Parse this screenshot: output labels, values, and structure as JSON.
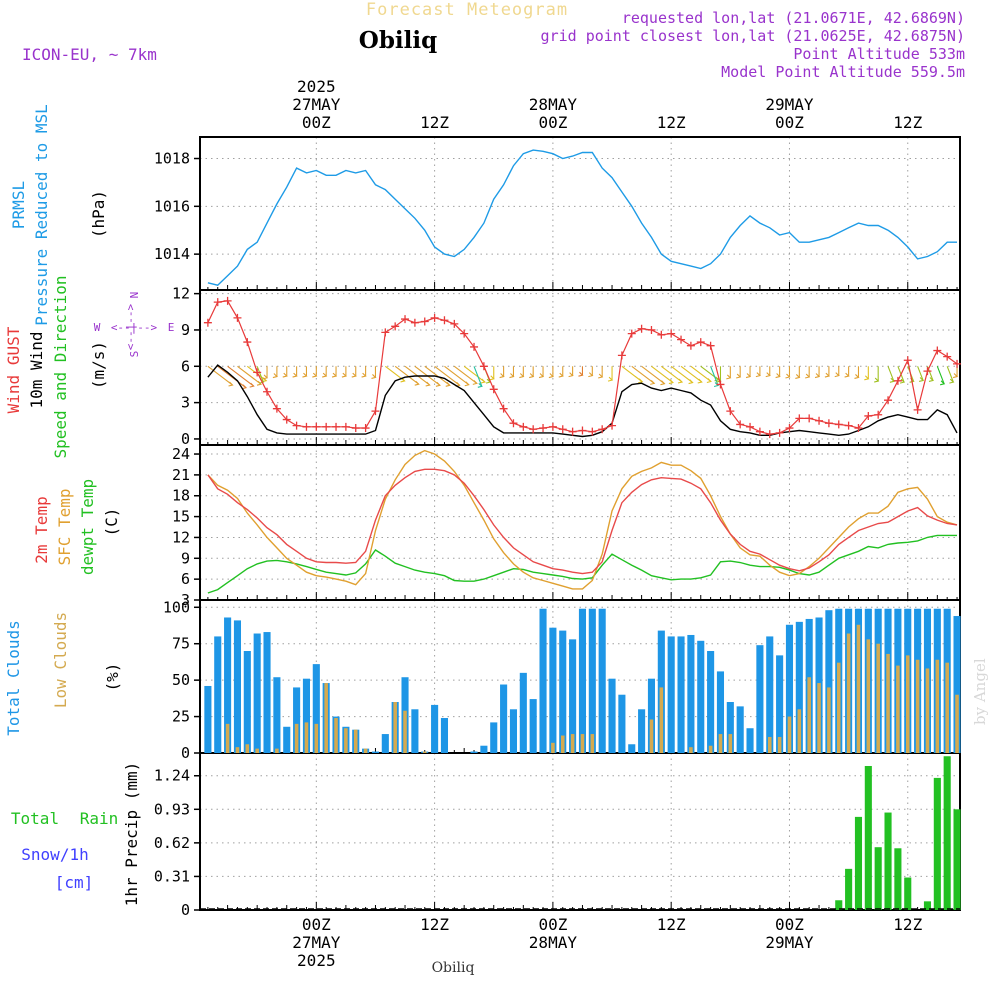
{
  "header": {
    "supertitle": "Forecast Meteogram",
    "location": "Obiliq",
    "model": "ICON-EU, ~ 7km",
    "requested": "requested lon,lat (21.0671E, 42.6869N)",
    "gridpoint": "grid point closest lon,lat (21.0625E, 42.6875N)",
    "altitude": "Point Altitude 533m",
    "model_altitude": "Model Point Altitude 559.5m",
    "credit": "by Angel",
    "footer_location": "Obiliq"
  },
  "time_axis": {
    "year": "2025",
    "top_labels": [
      {
        "hour": 0,
        "zlabel": "00Z",
        "date": "27MAY",
        "year": "2025"
      },
      {
        "hour": 12,
        "zlabel": "12Z",
        "date": "",
        "year": ""
      },
      {
        "hour": 24,
        "zlabel": "00Z",
        "date": "28MAY",
        "year": ""
      },
      {
        "hour": 36,
        "zlabel": "12Z",
        "date": "",
        "year": ""
      },
      {
        "hour": 48,
        "zlabel": "00Z",
        "date": "29MAY",
        "year": ""
      },
      {
        "hour": 60,
        "zlabel": "12Z",
        "date": "",
        "year": ""
      }
    ],
    "start_hour": -11,
    "end_hour": 65
  },
  "colors": {
    "pressure": "#1e9be6",
    "gust": "#e83a3a",
    "wind": "#000000",
    "temp": "#e84a4a",
    "sfc": "#e0a030",
    "dew": "#22c022",
    "total_cloud": "#1e96e6",
    "low_cloud": "#d4aa50",
    "rain": "#22c022",
    "label_purple": "#9933cc",
    "snow": "#4040ff"
  },
  "panel_labels": {
    "pressure": [
      "PRMSL",
      "Pressure Reduced to MSL",
      "(hPa)"
    ],
    "wind": [
      "Wind GUST",
      "10m Wind",
      "Speed and Direction",
      "(m/s)"
    ],
    "compass": {
      "n": "N",
      "s": "S",
      "e": "E",
      "w": "W",
      "arrows": "<--|-->"
    },
    "temp": [
      "2m Temp",
      "SFC Temp",
      "dewpt Temp",
      "(C)"
    ],
    "clouds": [
      "Total Clouds",
      "Low Clouds",
      "(%)"
    ],
    "precip": [
      "Total",
      "Rain",
      "Snow/1h",
      "[cm]",
      "1hr Precip (mm)"
    ]
  },
  "chart_data": [
    {
      "type": "line",
      "title": "PRMSL Pressure Reduced to MSL",
      "ylabel": "(hPa)",
      "yticks": [
        1014,
        1016,
        1018
      ],
      "ylim": [
        1012.5,
        1018.9
      ],
      "x": [
        -11,
        -10,
        -9,
        -8,
        -7,
        -6,
        -5,
        -4,
        -3,
        -2,
        -1,
        0,
        1,
        2,
        3,
        4,
        5,
        6,
        7,
        8,
        9,
        10,
        11,
        12,
        13,
        14,
        15,
        16,
        17,
        18,
        19,
        20,
        21,
        22,
        23,
        24,
        25,
        26,
        27,
        28,
        29,
        30,
        31,
        32,
        33,
        34,
        35,
        36,
        37,
        38,
        39,
        40,
        41,
        42,
        43,
        44,
        45,
        46,
        47,
        48,
        49,
        50,
        51,
        52,
        53,
        54,
        55,
        56,
        57,
        58,
        59,
        60,
        61,
        62,
        63,
        64,
        65
      ],
      "series": [
        {
          "name": "PRMSL",
          "values": [
            1012.8,
            1012.7,
            1013.1,
            1013.5,
            1014.2,
            1014.5,
            1015.3,
            1016.1,
            1016.8,
            1017.6,
            1017.4,
            1017.5,
            1017.3,
            1017.3,
            1017.5,
            1017.4,
            1017.5,
            1016.9,
            1016.7,
            1016.3,
            1015.9,
            1015.5,
            1015.0,
            1014.3,
            1014.0,
            1013.9,
            1014.2,
            1014.7,
            1015.3,
            1016.3,
            1016.9,
            1017.7,
            1018.2,
            1018.35,
            1018.3,
            1018.2,
            1018.0,
            1018.1,
            1018.25,
            1018.25,
            1017.6,
            1017.2,
            1016.6,
            1016.0,
            1015.3,
            1014.7,
            1014.0,
            1013.7,
            1013.6,
            1013.5,
            1013.4,
            1013.6,
            1014.0,
            1014.7,
            1015.2,
            1015.6,
            1015.3,
            1015.1,
            1014.8,
            1014.9,
            1014.5,
            1014.5,
            1014.6,
            1014.7,
            1014.9,
            1015.1,
            1015.3,
            1015.2,
            1015.2,
            1015.0,
            1014.7,
            1014.3,
            1013.8,
            1013.9,
            1014.1,
            1014.5,
            1014.5
          ]
        }
      ]
    },
    {
      "type": "line",
      "title": "Wind GUST / 10m Wind Speed and Direction",
      "ylabel": "(m/s)",
      "yticks": [
        0,
        3,
        6,
        9,
        12
      ],
      "ylim": [
        -0.5,
        12.3
      ],
      "x": [
        -11,
        -10,
        -9,
        -8,
        -7,
        -6,
        -5,
        -4,
        -3,
        -2,
        -1,
        0,
        1,
        2,
        3,
        4,
        5,
        6,
        7,
        8,
        9,
        10,
        11,
        12,
        13,
        14,
        15,
        16,
        17,
        18,
        19,
        20,
        21,
        22,
        23,
        24,
        25,
        26,
        27,
        28,
        29,
        30,
        31,
        32,
        33,
        34,
        35,
        36,
        37,
        38,
        39,
        40,
        41,
        42,
        43,
        44,
        45,
        46,
        47,
        48,
        49,
        50,
        51,
        52,
        53,
        54,
        55,
        56,
        57,
        58,
        59,
        60,
        61,
        62,
        63,
        64,
        65
      ],
      "series": [
        {
          "name": "Wind GUST",
          "values": [
            9.6,
            11.3,
            11.4,
            10.0,
            8.0,
            5.5,
            3.9,
            2.5,
            1.6,
            1.1,
            1.0,
            1.0,
            1.0,
            1.0,
            1.0,
            0.9,
            0.9,
            2.3,
            8.8,
            9.3,
            9.9,
            9.6,
            9.7,
            10.0,
            9.8,
            9.5,
            8.7,
            7.6,
            6.0,
            4.1,
            2.5,
            1.3,
            1.0,
            0.8,
            0.9,
            1.0,
            0.8,
            0.6,
            0.7,
            0.6,
            0.8,
            1.1,
            6.9,
            8.7,
            9.1,
            9.0,
            8.6,
            8.7,
            8.2,
            7.7,
            8.0,
            7.7,
            4.5,
            2.3,
            1.2,
            1.0,
            0.6,
            0.4,
            0.5,
            0.9,
            1.7,
            1.7,
            1.5,
            1.3,
            1.2,
            1.1,
            0.9,
            1.9,
            2.0,
            3.2,
            4.8,
            6.5,
            2.4,
            5.6,
            7.3,
            6.8,
            6.2
          ]
        },
        {
          "name": "10m Wind",
          "values": [
            5.1,
            6.1,
            5.5,
            4.8,
            3.5,
            2.0,
            0.8,
            0.5,
            0.4,
            0.4,
            0.4,
            0.4,
            0.4,
            0.4,
            0.4,
            0.4,
            0.4,
            0.7,
            3.6,
            4.8,
            5.1,
            5.2,
            5.2,
            5.2,
            5.0,
            4.5,
            4.0,
            3.0,
            2.0,
            1.0,
            0.5,
            0.5,
            0.5,
            0.5,
            0.5,
            0.5,
            0.4,
            0.3,
            0.2,
            0.3,
            0.6,
            1.3,
            3.9,
            4.5,
            4.6,
            4.2,
            4.0,
            4.2,
            4.0,
            3.8,
            3.2,
            2.8,
            1.5,
            0.8,
            0.6,
            0.5,
            0.3,
            0.3,
            0.5,
            0.6,
            0.7,
            0.6,
            0.5,
            0.4,
            0.3,
            0.4,
            0.7,
            1.0,
            1.5,
            1.8,
            2.0,
            1.8,
            1.6,
            1.6,
            2.4,
            2.0,
            0.5
          ]
        }
      ]
    },
    {
      "type": "line",
      "title": "2m Temp / SFC Temp / dewpt Temp",
      "ylabel": "(C)",
      "yticks": [
        3,
        6,
        9,
        12,
        15,
        18,
        21,
        24
      ],
      "ylim": [
        3,
        25.3
      ],
      "x": [
        -11,
        -10,
        -9,
        -8,
        -7,
        -6,
        -5,
        -4,
        -3,
        -2,
        -1,
        0,
        1,
        2,
        3,
        4,
        5,
        6,
        7,
        8,
        9,
        10,
        11,
        12,
        13,
        14,
        15,
        16,
        17,
        18,
        19,
        20,
        21,
        22,
        23,
        24,
        25,
        26,
        27,
        28,
        29,
        30,
        31,
        32,
        33,
        34,
        35,
        36,
        37,
        38,
        39,
        40,
        41,
        42,
        43,
        44,
        45,
        46,
        47,
        48,
        49,
        50,
        51,
        52,
        53,
        54,
        55,
        56,
        57,
        58,
        59,
        60,
        61,
        62,
        63,
        64,
        65
      ],
      "series": [
        {
          "name": "2m Temp",
          "values": [
            21.0,
            19.0,
            18.2,
            17.0,
            16.0,
            14.8,
            13.4,
            12.4,
            11.0,
            10.0,
            9.0,
            8.5,
            8.4,
            8.4,
            8.3,
            8.4,
            10.0,
            14.5,
            18.0,
            19.5,
            20.6,
            21.5,
            21.8,
            21.8,
            21.6,
            21.0,
            19.8,
            18.0,
            16.0,
            13.8,
            12.0,
            10.5,
            9.5,
            8.5,
            8.0,
            7.5,
            7.3,
            7.0,
            6.8,
            7.0,
            8.5,
            13.0,
            17.0,
            18.5,
            19.6,
            20.3,
            20.6,
            20.5,
            20.4,
            19.8,
            19.0,
            17.0,
            14.5,
            12.5,
            11.0,
            10.0,
            9.6,
            8.8,
            8.0,
            7.5,
            7.2,
            7.6,
            8.5,
            9.5,
            11.0,
            12.0,
            13.0,
            13.5,
            14.0,
            14.2,
            15.0,
            15.8,
            16.3,
            15.1,
            14.5,
            14.0,
            13.8
          ]
        },
        {
          "name": "SFC Temp",
          "values": [
            21.0,
            19.5,
            18.8,
            17.6,
            15.5,
            13.8,
            12.0,
            10.5,
            9.0,
            8.0,
            7.0,
            6.5,
            6.3,
            6.0,
            5.7,
            5.2,
            6.8,
            13.0,
            17.5,
            20.3,
            22.5,
            23.8,
            24.5,
            24.0,
            23.0,
            21.5,
            19.5,
            17.0,
            14.5,
            11.8,
            9.8,
            8.2,
            7.0,
            6.2,
            5.8,
            5.4,
            5.0,
            4.6,
            4.6,
            5.8,
            9.6,
            15.8,
            19.0,
            20.8,
            21.5,
            22.0,
            22.8,
            22.4,
            22.4,
            21.6,
            20.5,
            18.0,
            15.0,
            12.5,
            10.5,
            9.5,
            9.3,
            8.0,
            7.0,
            6.5,
            6.8,
            7.8,
            9.0,
            10.5,
            12.0,
            13.5,
            14.7,
            15.5,
            15.5,
            16.5,
            18.5,
            19.0,
            19.2,
            17.5,
            15.0,
            14.2,
            13.8
          ]
        },
        {
          "name": "dewpt Temp",
          "values": [
            4.0,
            4.5,
            5.5,
            6.5,
            7.5,
            8.2,
            8.6,
            8.7,
            8.5,
            8.2,
            7.8,
            7.4,
            7.0,
            6.8,
            6.6,
            6.9,
            8.2,
            10.2,
            9.3,
            8.3,
            7.8,
            7.3,
            7.0,
            6.8,
            6.5,
            5.8,
            5.7,
            5.7,
            6.0,
            6.5,
            7.0,
            7.5,
            7.4,
            7.0,
            6.8,
            6.6,
            6.4,
            6.1,
            6.0,
            6.2,
            8.0,
            9.6,
            8.8,
            8.0,
            7.3,
            6.5,
            6.2,
            5.9,
            6.0,
            6.0,
            6.2,
            6.6,
            8.5,
            8.6,
            8.4,
            8.0,
            7.8,
            7.8,
            7.7,
            7.3,
            6.8,
            6.6,
            7.0,
            8.0,
            9.0,
            9.5,
            10.0,
            10.7,
            10.5,
            11.0,
            11.2,
            11.3,
            11.5,
            12.0,
            12.3,
            12.3,
            12.3
          ]
        }
      ]
    },
    {
      "type": "bar",
      "title": "Total Clouds / Low Clouds",
      "ylabel": "(%)",
      "yticks": [
        0,
        25,
        50,
        75,
        100
      ],
      "ylim": [
        0,
        105
      ],
      "x": [
        -11,
        -10,
        -9,
        -8,
        -7,
        -6,
        -5,
        -4,
        -3,
        -2,
        -1,
        0,
        1,
        2,
        3,
        4,
        5,
        6,
        7,
        8,
        9,
        10,
        11,
        12,
        13,
        14,
        15,
        16,
        17,
        18,
        19,
        20,
        21,
        22,
        23,
        24,
        25,
        26,
        27,
        28,
        29,
        30,
        31,
        32,
        33,
        34,
        35,
        36,
        37,
        38,
        39,
        40,
        41,
        42,
        43,
        44,
        45,
        46,
        47,
        48,
        49,
        50,
        51,
        52,
        53,
        54,
        55,
        56,
        57,
        58,
        59,
        60,
        61,
        62,
        63,
        64,
        65
      ],
      "series": [
        {
          "name": "Total Clouds",
          "values": [
            46,
            80,
            93,
            91,
            70,
            82,
            83,
            52,
            18,
            45,
            51,
            61,
            48,
            25,
            18,
            16,
            3,
            1,
            13,
            35,
            52,
            30,
            1,
            33,
            24,
            0,
            0,
            1,
            5,
            21,
            47,
            30,
            55,
            37,
            99,
            86,
            84,
            78,
            99,
            99,
            99,
            51,
            40,
            6,
            30,
            51,
            84,
            80,
            80,
            81,
            77,
            70,
            56,
            35,
            32,
            17,
            74,
            80,
            67,
            88,
            90,
            92,
            93,
            98,
            99,
            99,
            99,
            99,
            99,
            99,
            99,
            99,
            99,
            99,
            99,
            99,
            94
          ]
        },
        {
          "name": "Low Clouds",
          "values": [
            0,
            0,
            20,
            4,
            6,
            3,
            0,
            3,
            0,
            20,
            21,
            20,
            48,
            24,
            17,
            16,
            3,
            0,
            0,
            35,
            29,
            0,
            1,
            0,
            0,
            0,
            0,
            0,
            0,
            0,
            0,
            0,
            0,
            0,
            0,
            7,
            12,
            13,
            13,
            13,
            0,
            0,
            0,
            0,
            0,
            23,
            45,
            0,
            0,
            4,
            0,
            5,
            13,
            13,
            0,
            0,
            0,
            11,
            11,
            25,
            30,
            52,
            48,
            45,
            62,
            82,
            88,
            78,
            75,
            68,
            60,
            67,
            64,
            58,
            64,
            62,
            40
          ]
        }
      ]
    },
    {
      "type": "bar",
      "title": "1hr Precip",
      "ylabel": "1hr Precip (mm)",
      "yticks": [
        0,
        0.31,
        0.62,
        0.93,
        1.24
      ],
      "ylim": [
        0,
        1.45
      ],
      "x": [
        45,
        46,
        47,
        48,
        49,
        50,
        51,
        52,
        53,
        54,
        55,
        56,
        57,
        58,
        59,
        60,
        61,
        62,
        63,
        64,
        65
      ],
      "series": [
        {
          "name": "Total Rain",
          "values": [
            0,
            0,
            0,
            0,
            0,
            0,
            0,
            0,
            0.09,
            0.38,
            0.86,
            1.33,
            0.58,
            0.9,
            0.57,
            0.3,
            0,
            0.08,
            1.22,
            1.42,
            0.93
          ]
        }
      ]
    }
  ]
}
